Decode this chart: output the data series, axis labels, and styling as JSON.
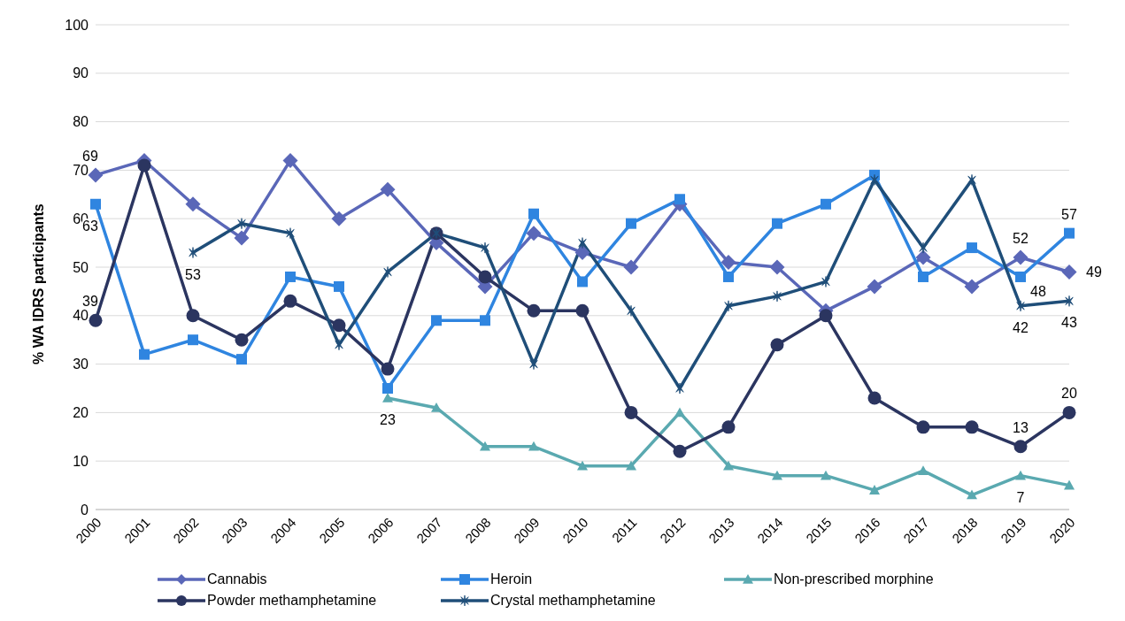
{
  "chart_data": {
    "type": "line",
    "ylabel": "% WA IDRS participants",
    "categories": [
      "2000",
      "2001",
      "2002",
      "2003",
      "2004",
      "2005",
      "2006",
      "2007",
      "2008",
      "2009",
      "2010",
      "2011",
      "2012",
      "2013",
      "2014",
      "2015",
      "2016",
      "2017",
      "2018",
      "2019",
      "2020"
    ],
    "series": [
      {
        "name": "Cannabis",
        "color": "#5a67b8",
        "marker": "diamond",
        "values": [
          69,
          72,
          63,
          56,
          72,
          60,
          66,
          55,
          46,
          57,
          53,
          50,
          63,
          51,
          50,
          41,
          46,
          52,
          46,
          52,
          49
        ],
        "value_labels": [
          "69",
          null,
          null,
          null,
          null,
          null,
          null,
          null,
          null,
          null,
          null,
          null,
          null,
          null,
          null,
          null,
          null,
          null,
          null,
          "52",
          "49"
        ]
      },
      {
        "name": "Heroin",
        "color": "#2f85e0",
        "marker": "square",
        "values": [
          63,
          32,
          35,
          31,
          48,
          46,
          25,
          39,
          39,
          61,
          47,
          59,
          64,
          48,
          59,
          63,
          69,
          48,
          54,
          48,
          57
        ],
        "value_labels": [
          "63",
          null,
          null,
          null,
          null,
          null,
          null,
          null,
          null,
          null,
          null,
          null,
          null,
          null,
          null,
          null,
          null,
          null,
          null,
          "48",
          "57"
        ]
      },
      {
        "name": "Non-prescribed morphine",
        "color": "#5aa9b0",
        "marker": "triangle",
        "values": [
          null,
          null,
          null,
          null,
          null,
          null,
          23,
          21,
          13,
          13,
          9,
          9,
          20,
          9,
          7,
          7,
          4,
          8,
          3,
          7,
          5
        ],
        "value_labels": [
          null,
          null,
          null,
          null,
          null,
          null,
          "23",
          null,
          null,
          null,
          null,
          null,
          null,
          null,
          null,
          null,
          null,
          null,
          null,
          "7",
          null
        ]
      },
      {
        "name": "Powder methamphetamine",
        "color": "#2b3560",
        "marker": "circle",
        "values": [
          39,
          71,
          40,
          35,
          43,
          38,
          29,
          57,
          48,
          41,
          41,
          20,
          12,
          17,
          34,
          40,
          23,
          17,
          17,
          13,
          20
        ],
        "value_labels": [
          "39",
          null,
          null,
          null,
          null,
          null,
          null,
          null,
          null,
          null,
          null,
          null,
          null,
          null,
          null,
          null,
          null,
          null,
          null,
          "13",
          "20"
        ]
      },
      {
        "name": "Crystal methamphetamine",
        "color": "#1f4e79",
        "marker": "cross",
        "values": [
          null,
          null,
          53,
          59,
          57,
          34,
          49,
          57,
          54,
          30,
          55,
          41,
          25,
          42,
          44,
          47,
          68,
          54,
          68,
          42,
          43
        ],
        "value_labels": [
          null,
          null,
          "53",
          null,
          null,
          null,
          null,
          null,
          null,
          null,
          null,
          null,
          null,
          null,
          null,
          null,
          null,
          null,
          null,
          "42",
          "43"
        ]
      }
    ],
    "ylim": [
      0,
      100
    ],
    "yticks": [
      0,
      10,
      20,
      30,
      40,
      50,
      60,
      70,
      80,
      90,
      100
    ],
    "grid": "y",
    "legend": "bottom",
    "line_style": "solid"
  }
}
